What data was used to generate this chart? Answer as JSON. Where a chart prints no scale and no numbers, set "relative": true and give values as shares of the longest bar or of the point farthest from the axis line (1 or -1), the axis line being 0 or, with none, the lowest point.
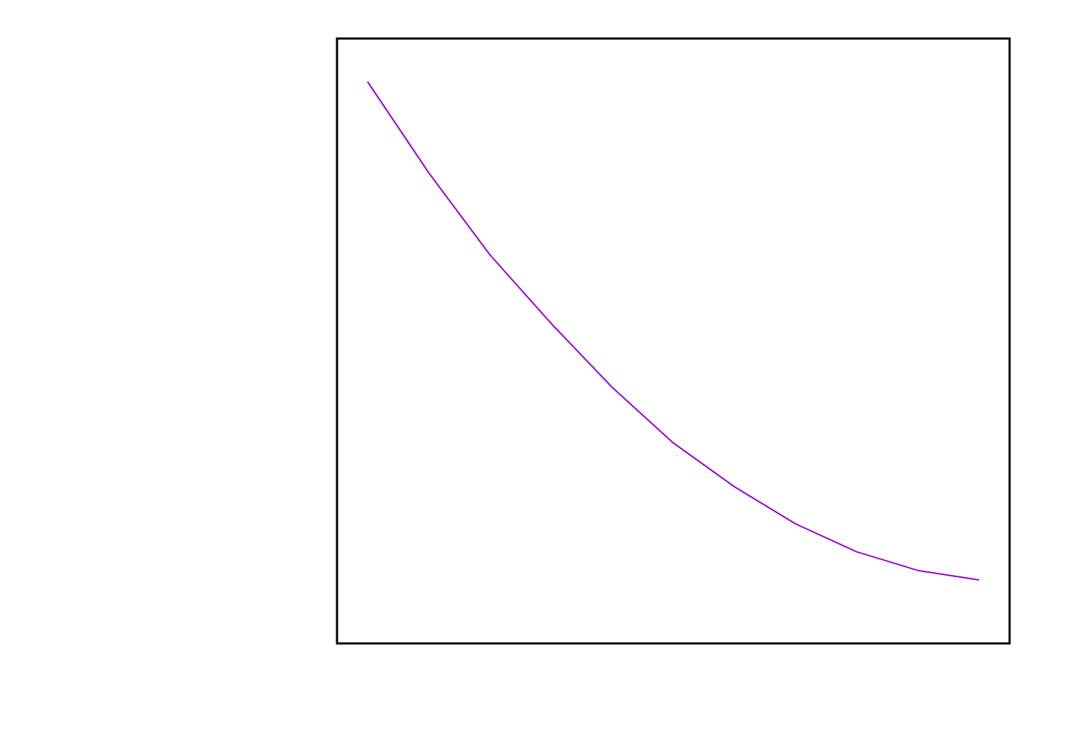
{
  "chart_data": {
    "type": "line",
    "relative": true,
    "categories": [
      null,
      null,
      null,
      null,
      null,
      null,
      null,
      null,
      null,
      null,
      null
    ],
    "series": [
      {
        "color": "#9400d3",
        "values": [
          1.0,
          0.838,
          0.692,
          0.57,
          0.456,
          0.357,
          0.279,
          0.213,
          0.163,
          0.13,
          0.113
        ]
      }
    ],
    "line_style": "solid",
    "marker": "none",
    "grid": false
  }
}
